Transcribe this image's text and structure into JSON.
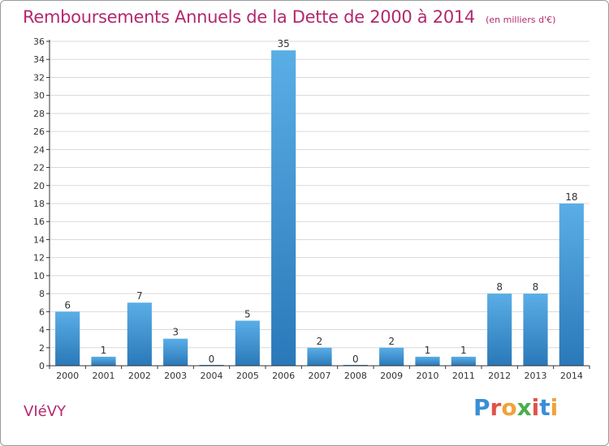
{
  "title": "Remboursements Annuels de la Dette de 2000 à 2014",
  "subtitle": "(en milliers d'€)",
  "place": "VIéVY",
  "brand": {
    "letters": [
      {
        "ch": "P",
        "color": "#3a8fd6"
      },
      {
        "ch": "r",
        "color": "#e0524a"
      },
      {
        "ch": "o",
        "color": "#f1a23a"
      },
      {
        "ch": "x",
        "color": "#4aae4a"
      },
      {
        "ch": "i",
        "color": "#e0524a"
      },
      {
        "ch": "t",
        "color": "#3a8fd6"
      },
      {
        "ch": "i",
        "color": "#f1a23a"
      }
    ]
  },
  "colors": {
    "bar_top": "#5aaee6",
    "bar_bottom": "#2a78b8",
    "axis": "#333333",
    "grid": "#d9d9d9",
    "text": "#333333",
    "accent": "#b3286e"
  },
  "chart_data": {
    "type": "bar",
    "categories": [
      "2000",
      "2001",
      "2002",
      "2003",
      "2004",
      "2005",
      "2006",
      "2007",
      "2008",
      "2009",
      "2010",
      "2011",
      "2012",
      "2013",
      "2014"
    ],
    "values": [
      6,
      1,
      7,
      3,
      0,
      5,
      35,
      2,
      0,
      2,
      1,
      1,
      8,
      8,
      18
    ],
    "ylim": [
      0,
      36
    ],
    "yticks": [
      0,
      2,
      4,
      6,
      8,
      10,
      12,
      14,
      16,
      18,
      20,
      22,
      24,
      26,
      28,
      30,
      32,
      34,
      36
    ],
    "grid": true,
    "title": "Remboursements Annuels de la Dette de 2000 à 2014",
    "xlabel": "",
    "ylabel": ""
  }
}
